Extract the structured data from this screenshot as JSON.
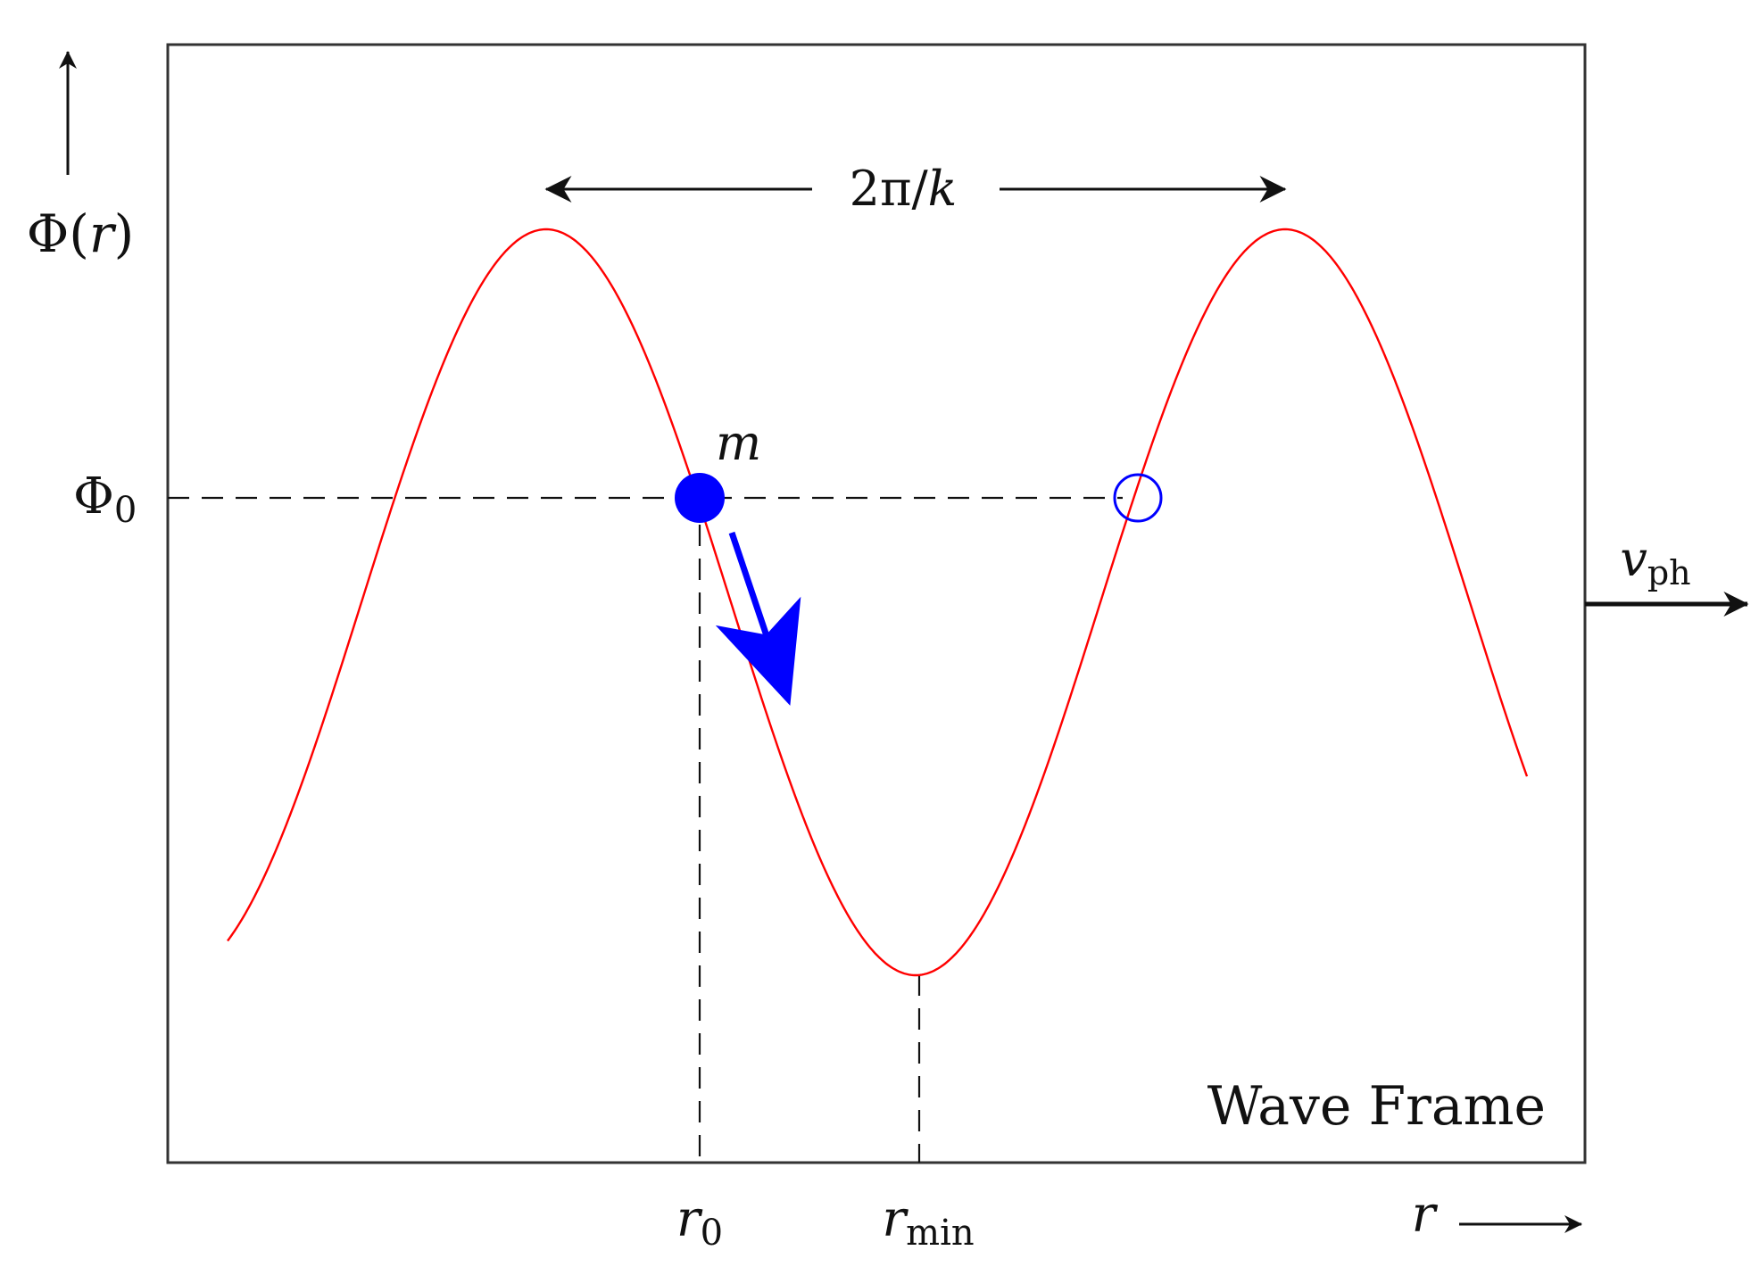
{
  "diagram": {
    "frame_label": "Wave Frame",
    "y_axis": {
      "symbol": "Φ",
      "open_paren": "(",
      "variable": "r",
      "close_paren": ")"
    },
    "x_axis": {
      "variable": "r"
    },
    "phi0": {
      "symbol": "Φ",
      "subscript": "0"
    },
    "particle_label": "m",
    "wavelength_label": {
      "prefix": "2π/",
      "variable": "k"
    },
    "r0": {
      "variable": "r",
      "subscript": "0"
    },
    "rmin": {
      "variable": "r",
      "subscript": "min"
    },
    "phase_velocity": {
      "variable": "v",
      "subscript": "ph"
    },
    "colors": {
      "curve": "#ff0000",
      "particle": "#0000ff",
      "axes": "#111111",
      "frame": "#333333"
    }
  }
}
